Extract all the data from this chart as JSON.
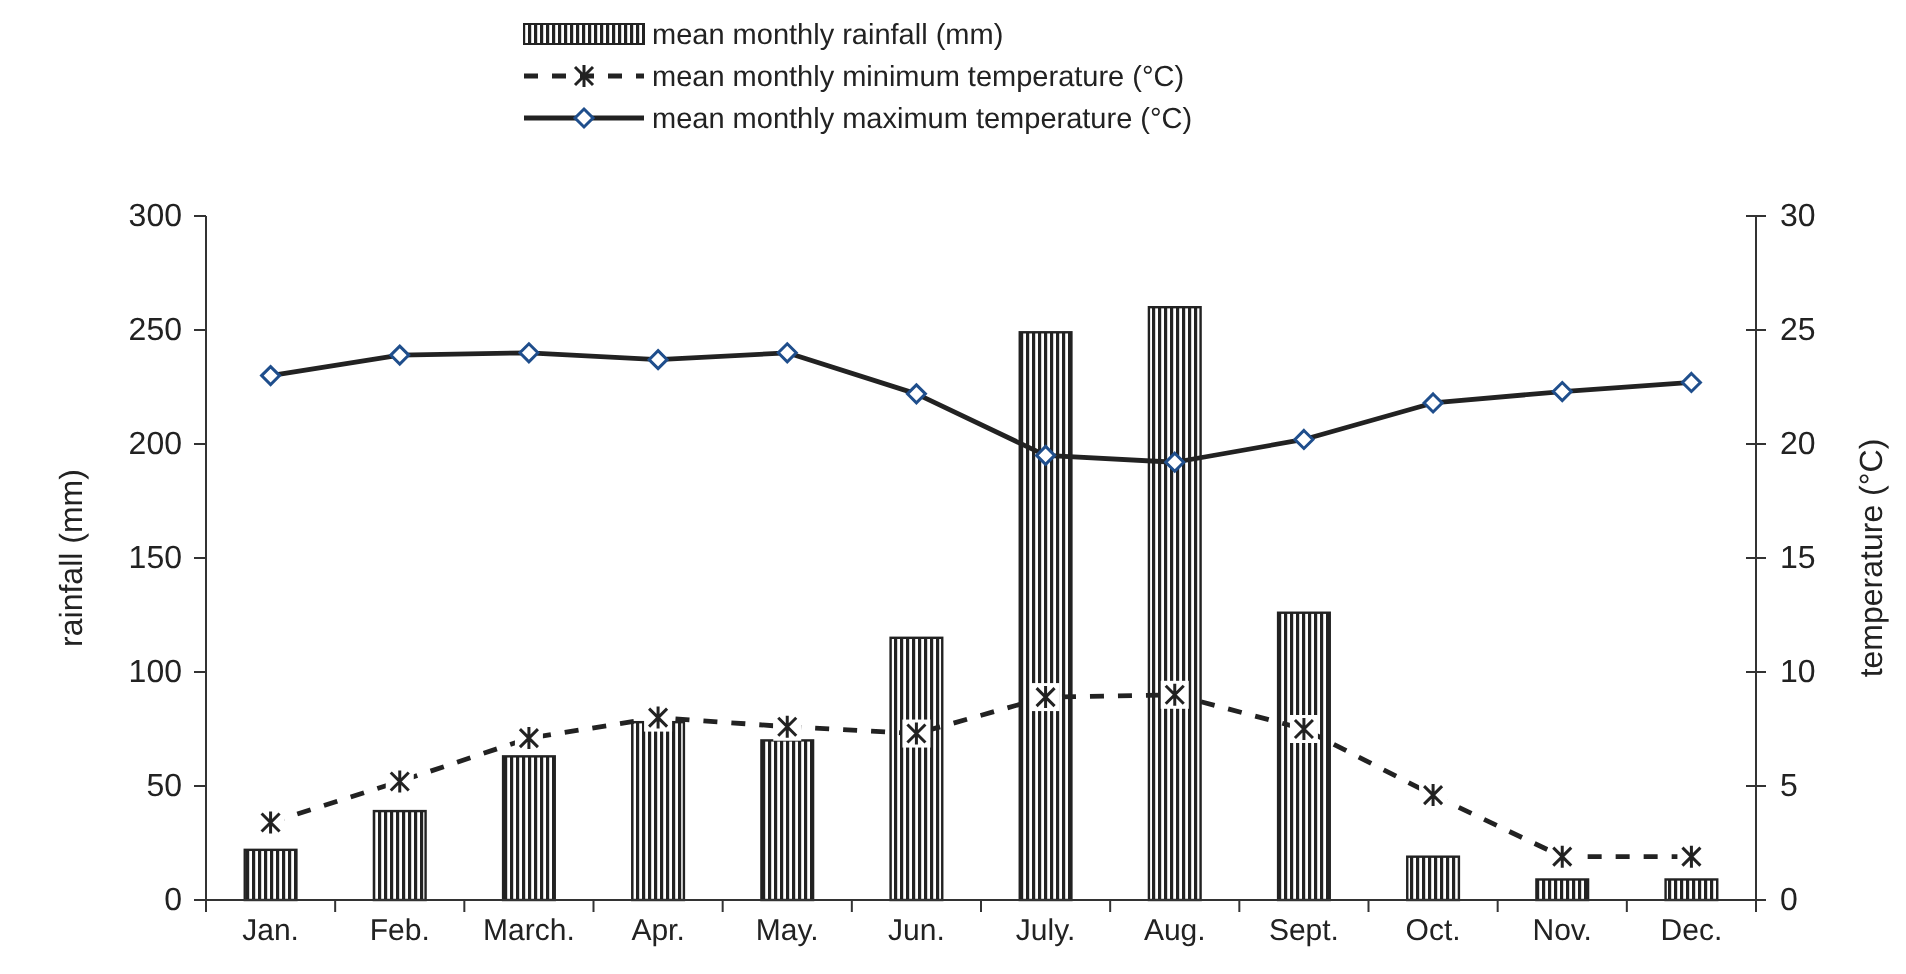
{
  "chart_data": {
    "type": "bar",
    "categories": [
      "Jan.",
      "Feb.",
      "March.",
      "Apr.",
      "May.",
      "Jun.",
      "July.",
      "Aug.",
      "Sept.",
      "Oct.",
      "Nov.",
      "Dec."
    ],
    "series": [
      {
        "name": "mean monthly rainfall (mm)",
        "color": "#222222",
        "values": [
          22,
          39,
          63,
          78,
          70,
          115,
          249,
          260,
          126,
          19,
          9,
          9
        ]
      },
      {
        "name": "mean monthly minimum temperature (°C)",
        "type": "line",
        "axis": "y2",
        "color": "#222222",
        "line_style": "dashed",
        "marker": "cross",
        "values": [
          3.4,
          5.2,
          7.1,
          8.0,
          7.6,
          7.3,
          8.9,
          9.0,
          7.5,
          4.6,
          1.9,
          1.9
        ]
      },
      {
        "name": "mean monthly maximum temperature (°C)",
        "type": "line",
        "axis": "y2",
        "color": "#222222",
        "line_style": "solid",
        "marker": "diamond",
        "values": [
          23.0,
          23.9,
          24.0,
          23.7,
          24.0,
          22.2,
          19.5,
          19.2,
          20.2,
          21.8,
          22.3,
          22.7
        ]
      }
    ],
    "ylabel": "rainfall (mm)",
    "y2label": "temperature (°C)",
    "ylim": [
      0,
      300
    ],
    "yticks": [
      0,
      50,
      100,
      150,
      200,
      250,
      300
    ],
    "y2lim": [
      0,
      30
    ],
    "y2ticks": [
      0,
      5,
      10,
      15,
      20,
      25,
      30
    ],
    "grid": false,
    "legend": "top"
  }
}
